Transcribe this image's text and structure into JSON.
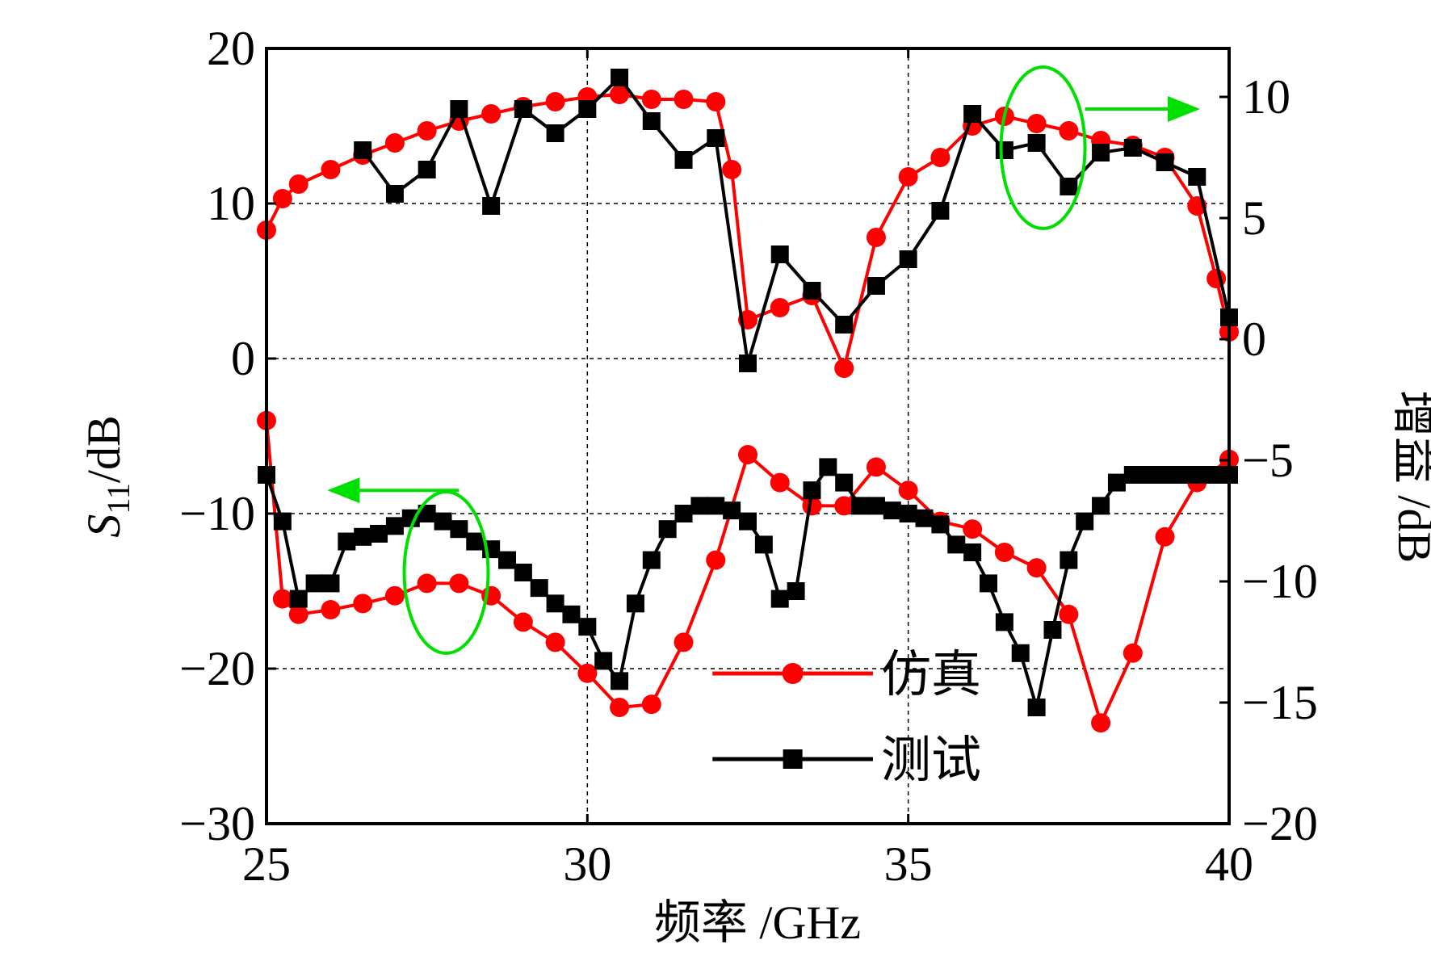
{
  "chart_data": {
    "type": "line",
    "xlabel": "频率 /GHz",
    "ylabel_left": {
      "symbol": "S",
      "subscript": "11",
      "unit": "/dB"
    },
    "ylabel_right": "增益 /dB",
    "xlim": [
      25,
      40
    ],
    "ylim_left": [
      -30,
      20
    ],
    "ylim_right": [
      -20,
      12
    ],
    "xticks": [
      25,
      30,
      35,
      40
    ],
    "xtick_labels": [
      "25",
      "30",
      "35",
      "40"
    ],
    "yticks_left": [
      -30,
      -20,
      -10,
      0,
      10,
      20
    ],
    "ytick_labels_left": [
      "−30",
      "−20",
      "−10",
      "0",
      "10",
      "20"
    ],
    "yticks_right": [
      -20,
      -15,
      -10,
      -5,
      0,
      5,
      10
    ],
    "ytick_labels_right": [
      "−20",
      "−15",
      "−10",
      "−5",
      "0",
      "5",
      "10"
    ],
    "grid": true,
    "legend_position": "bottom-center",
    "legend": [
      {
        "name": "仿真",
        "color": "#ff0000",
        "marker": "circle"
      },
      {
        "name": "测试",
        "color": "#000000",
        "marker": "square"
      }
    ],
    "series": [
      {
        "name": "仿真",
        "quantity": "增益",
        "axis": "right",
        "color": "#ff0000",
        "marker": "circle",
        "x": [
          25.0,
          25.25,
          25.5,
          26.0,
          26.5,
          27.0,
          27.5,
          28.0,
          28.5,
          29.0,
          29.5,
          30.0,
          30.5,
          31.0,
          31.5,
          32.0,
          32.25,
          32.5,
          33.0,
          33.5,
          34.0,
          34.5,
          35.0,
          35.5,
          36.0,
          36.5,
          37.0,
          37.5,
          38.0,
          38.5,
          39.0,
          39.5,
          39.8,
          40.0
        ],
        "y": [
          4.5,
          5.8,
          6.4,
          7.0,
          7.6,
          8.1,
          8.6,
          9.0,
          9.3,
          9.6,
          9.8,
          10.0,
          10.1,
          9.9,
          9.9,
          9.8,
          7.0,
          0.8,
          1.3,
          1.8,
          -1.2,
          4.2,
          6.7,
          7.5,
          8.8,
          9.2,
          8.9,
          8.6,
          8.2,
          8.0,
          7.5,
          5.5,
          2.5,
          0.3
        ]
      },
      {
        "name": "测试",
        "quantity": "增益",
        "axis": "right",
        "color": "#000000",
        "marker": "square",
        "x": [
          26.5,
          27.0,
          27.5,
          28.0,
          28.5,
          29.0,
          29.5,
          30.0,
          30.5,
          31.0,
          31.5,
          32.0,
          32.5,
          33.0,
          33.5,
          34.0,
          34.5,
          35.0,
          35.5,
          36.0,
          36.5,
          37.0,
          37.5,
          38.0,
          38.5,
          39.0,
          39.5,
          40.0
        ],
        "y": [
          7.8,
          6.0,
          7.0,
          9.5,
          5.5,
          9.5,
          8.5,
          9.5,
          10.8,
          9.0,
          7.4,
          8.3,
          -1.0,
          3.5,
          2.0,
          0.6,
          2.2,
          3.3,
          5.3,
          9.3,
          7.8,
          8.1,
          6.3,
          7.7,
          7.9,
          7.3,
          6.7,
          0.9
        ]
      },
      {
        "name": "仿真",
        "quantity": "S11",
        "axis": "left",
        "color": "#ff0000",
        "marker": "circle",
        "x": [
          25.0,
          25.25,
          25.5,
          26.0,
          26.5,
          27.0,
          27.5,
          28.0,
          28.5,
          29.0,
          29.5,
          30.0,
          30.5,
          31.0,
          31.5,
          32.0,
          32.5,
          33.0,
          33.5,
          34.0,
          34.5,
          35.0,
          35.5,
          36.0,
          36.5,
          37.0,
          37.5,
          38.0,
          38.5,
          39.0,
          39.5,
          40.0
        ],
        "y": [
          -4.0,
          -15.5,
          -16.5,
          -16.2,
          -15.8,
          -15.3,
          -14.5,
          -14.5,
          -15.3,
          -17.0,
          -18.3,
          -20.3,
          -22.5,
          -22.3,
          -18.3,
          -13.0,
          -6.2,
          -8.0,
          -9.5,
          -9.5,
          -7.0,
          -8.5,
          -10.5,
          -11.0,
          -12.5,
          -13.5,
          -16.5,
          -23.5,
          -19.0,
          -11.5,
          -8.0,
          -6.5
        ]
      },
      {
        "name": "测试",
        "quantity": "S11",
        "axis": "left",
        "color": "#000000",
        "marker": "square",
        "x": [
          25.0,
          25.25,
          25.5,
          25.75,
          26.0,
          26.25,
          26.5,
          26.75,
          27.0,
          27.25,
          27.5,
          27.75,
          28.0,
          28.25,
          28.5,
          28.75,
          29.0,
          29.25,
          29.5,
          29.75,
          30.0,
          30.25,
          30.5,
          30.75,
          31.0,
          31.25,
          31.5,
          31.75,
          32.0,
          32.25,
          32.5,
          32.75,
          33.0,
          33.25,
          33.5,
          33.75,
          34.0,
          34.25,
          34.5,
          34.75,
          35.0,
          35.25,
          35.5,
          35.75,
          36.0,
          36.25,
          36.5,
          36.75,
          37.0,
          37.25,
          37.5,
          37.75,
          38.0,
          38.25,
          38.5,
          38.75,
          39.0,
          39.25,
          39.5,
          39.75,
          40.0
        ],
        "y": [
          -7.5,
          -10.5,
          -15.5,
          -14.5,
          -14.5,
          -11.8,
          -11.5,
          -11.3,
          -10.8,
          -10.3,
          -10.0,
          -10.5,
          -11.0,
          -11.8,
          -12.3,
          -13.0,
          -13.8,
          -14.8,
          -15.8,
          -16.5,
          -17.3,
          -19.5,
          -20.8,
          -15.8,
          -13.0,
          -11.0,
          -10.0,
          -9.5,
          -9.5,
          -9.8,
          -10.5,
          -12.0,
          -15.5,
          -15.0,
          -8.5,
          -7.0,
          -8.0,
          -9.5,
          -9.5,
          -9.8,
          -10.0,
          -10.3,
          -10.7,
          -12.0,
          -12.5,
          -14.5,
          -17.0,
          -19.0,
          -22.5,
          -17.5,
          -13.0,
          -10.5,
          -9.5,
          -8.0,
          -7.5,
          -7.5,
          -7.5,
          -7.5,
          -7.5,
          -7.5,
          -7.5
        ]
      }
    ],
    "annotations": [
      {
        "name": "gain-curve-ellipse",
        "color": "#00e000",
        "points_to": "right-axis"
      },
      {
        "name": "s11-curve-ellipse",
        "color": "#00e000",
        "points_to": "left-axis"
      }
    ]
  }
}
